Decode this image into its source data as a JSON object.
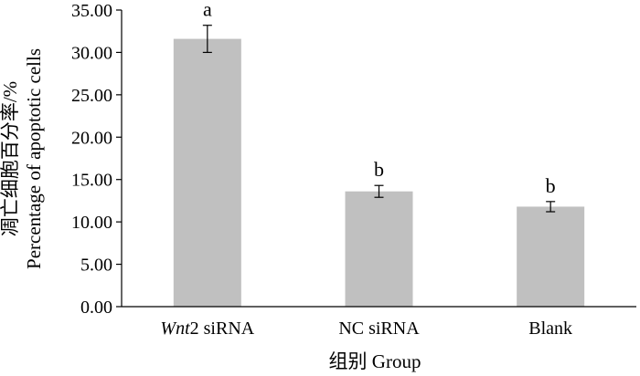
{
  "chart_data": {
    "type": "bar",
    "categories": [
      {
        "italic": "Wnt",
        "rest": "2 siRNA"
      },
      {
        "italic": "",
        "rest": "NC siRNA"
      },
      {
        "italic": "",
        "rest": "Blank"
      }
    ],
    "values": [
      31.6,
      13.6,
      11.8
    ],
    "errors": [
      1.6,
      0.7,
      0.6
    ],
    "significance": [
      "a",
      "b",
      "b"
    ],
    "ylim": [
      0,
      35
    ],
    "yticks": [
      "0.00",
      "5.00",
      "10.00",
      "15.00",
      "20.00",
      "25.00",
      "30.00",
      "35.00"
    ],
    "ytick_values": [
      0,
      5,
      10,
      15,
      20,
      25,
      30,
      35
    ],
    "xlabel": "组别 Group",
    "ylabel_cn": "凋亡细胞百分率/%",
    "ylabel_en": "Percentage of apoptotic cells",
    "bar_color": "#c0c0c0",
    "grid": false
  }
}
